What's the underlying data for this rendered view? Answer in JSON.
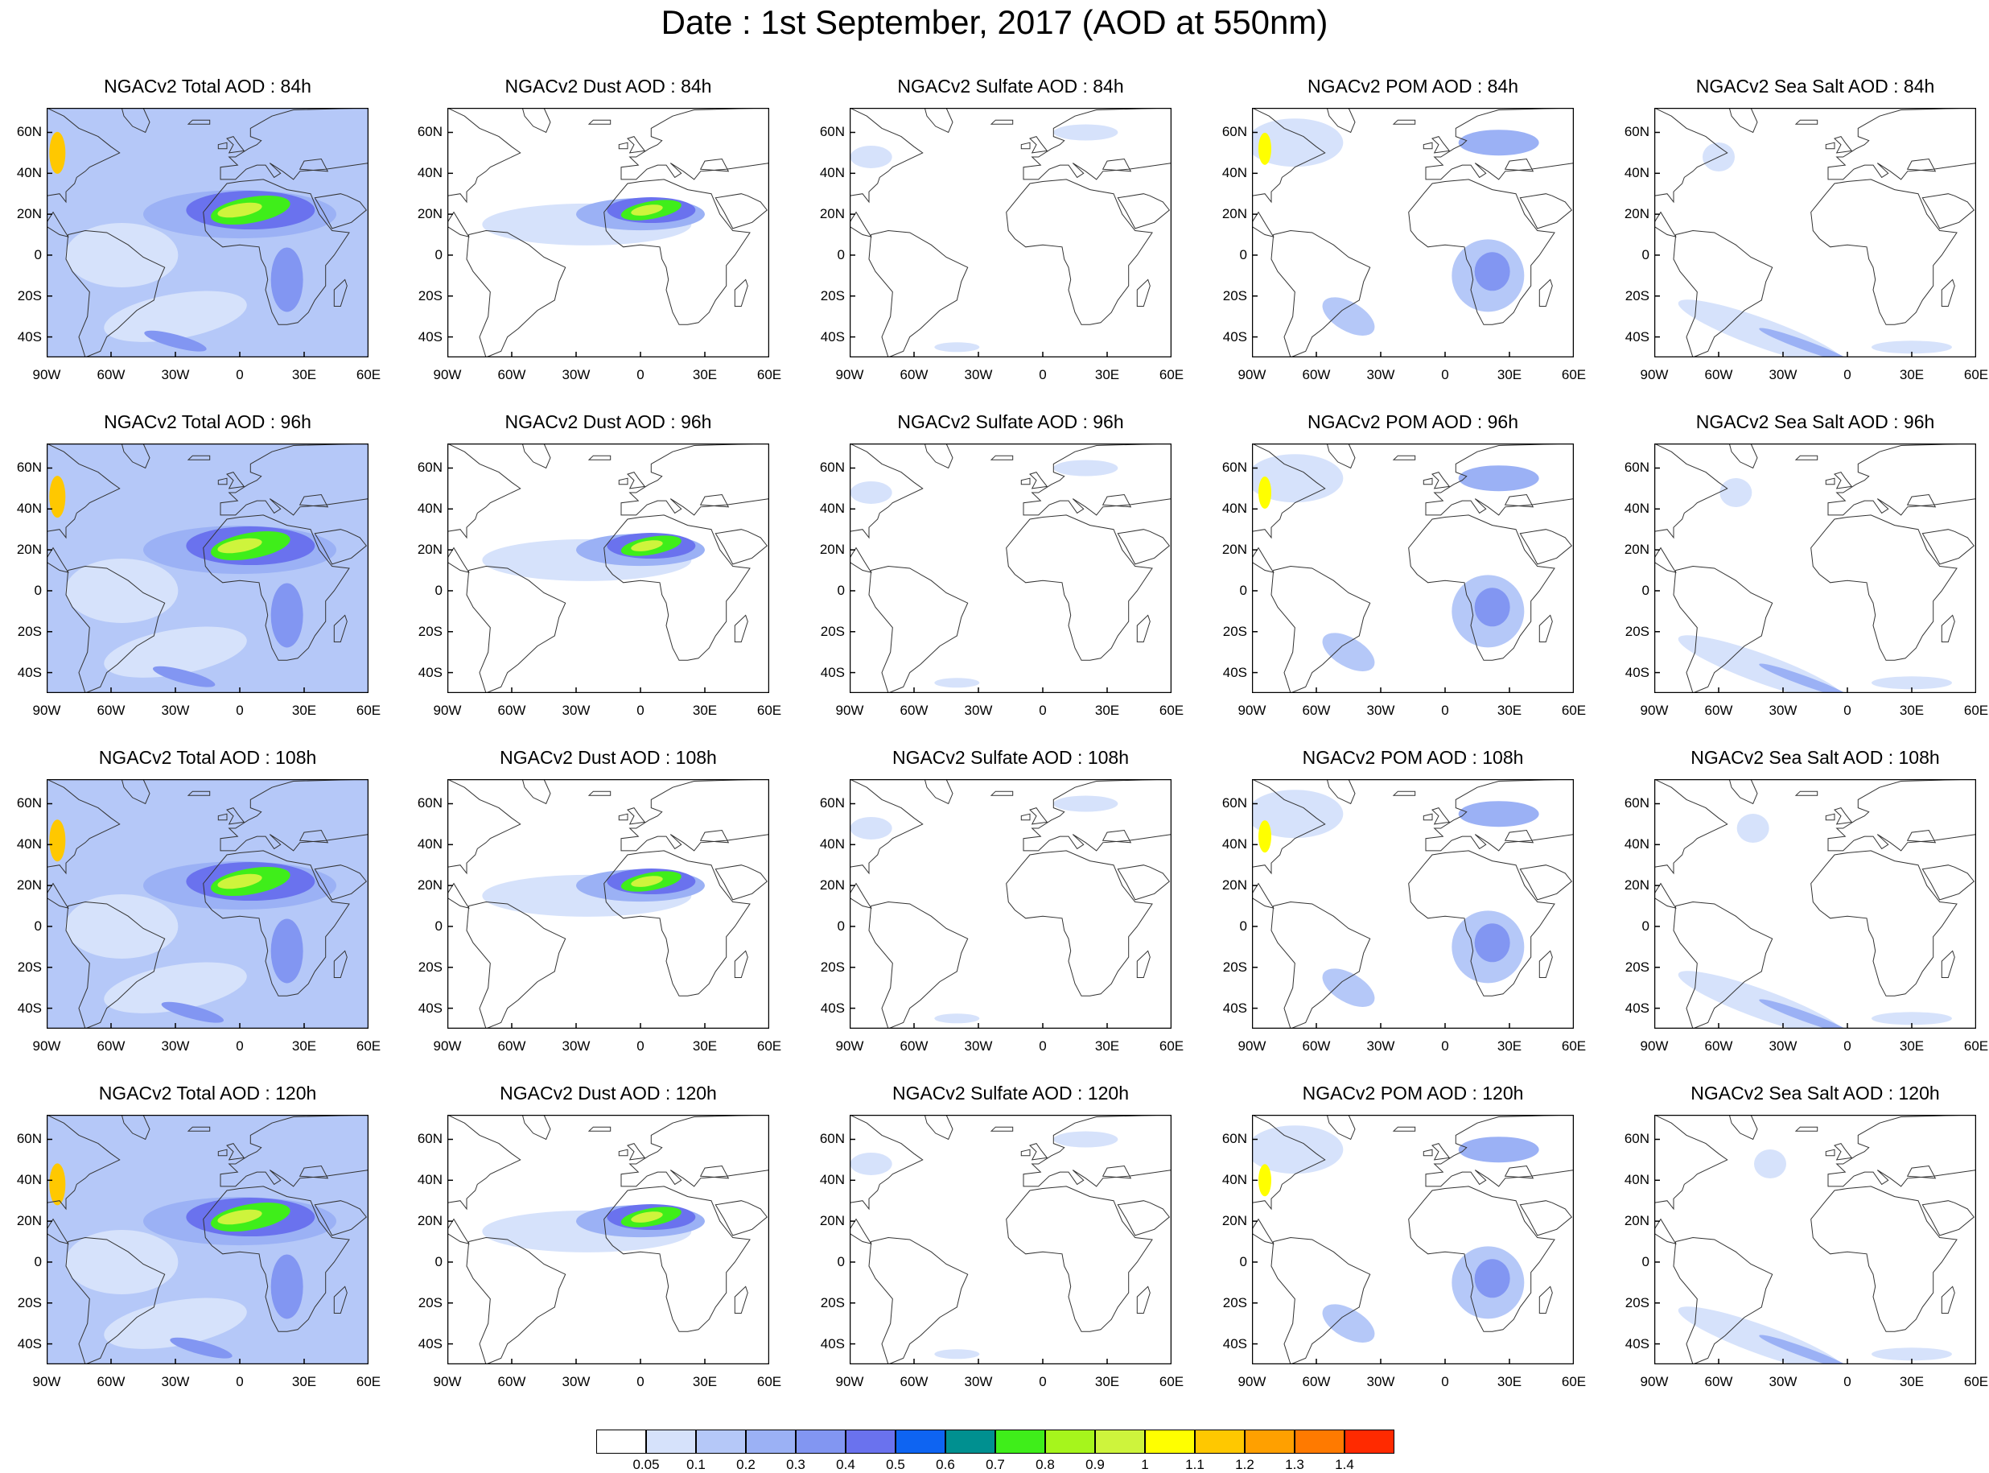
{
  "title": "Date : 1st September, 2017 (AOD at 550nm)",
  "rows": [
    {
      "hour": "84h",
      "titles": [
        "NGACv2 Total AOD : 84h",
        "NGACv2 Dust AOD : 84h",
        "NGACv2 Sulfate AOD : 84h",
        "NGACv2 POM AOD : 84h",
        "NGACv2 Sea Salt AOD : 84h"
      ]
    },
    {
      "hour": "96h",
      "titles": [
        "NGACv2 Total AOD : 96h",
        "NGACv2 Dust AOD : 96h",
        "NGACv2 Sulfate AOD : 96h",
        "NGACv2 POM AOD : 96h",
        "NGACv2 Sea Salt AOD : 96h"
      ]
    },
    {
      "hour": "108h",
      "titles": [
        "NGACv2 Total AOD : 108h",
        "NGACv2 Dust AOD : 108h",
        "NGACv2 Sulfate AOD : 108h",
        "NGACv2 POM AOD : 108h",
        "NGACv2 Sea Salt AOD : 108h"
      ]
    },
    {
      "hour": "120h",
      "titles": [
        "NGACv2 Total AOD : 120h",
        "NGACv2 Dust AOD : 120h",
        "NGACv2 Sulfate AOD : 120h",
        "NGACv2 POM AOD : 120h",
        "NGACv2 Sea Salt  AOD : 120h"
      ]
    }
  ],
  "lat_labels": [
    "60N",
    "40N",
    "20N",
    "0",
    "20S",
    "40S"
  ],
  "lon_labels": [
    "90W",
    "60W",
    "30W",
    "0",
    "30E",
    "60E"
  ],
  "colorbar": {
    "labels": [
      "0.05",
      "0.1",
      "0.2",
      "0.3",
      "0.4",
      "0.5",
      "0.6",
      "0.7",
      "0.8",
      "0.9",
      "1",
      "1.1",
      "1.2",
      "1.3",
      "1.4"
    ],
    "colors": [
      "#ffffff",
      "#d6e2fb",
      "#b5c8f8",
      "#9bb1f5",
      "#8296f2",
      "#6a72ee",
      "#0e64f2",
      "#009090",
      "#3fee1a",
      "#a6f51c",
      "#cef43c",
      "#ffff00",
      "#ffc800",
      "#ffa000",
      "#ff7a00",
      "#ff2a00"
    ]
  },
  "panel_fields": [
    "total",
    "dust",
    "sulfate",
    "pom",
    "seasalt"
  ]
}
